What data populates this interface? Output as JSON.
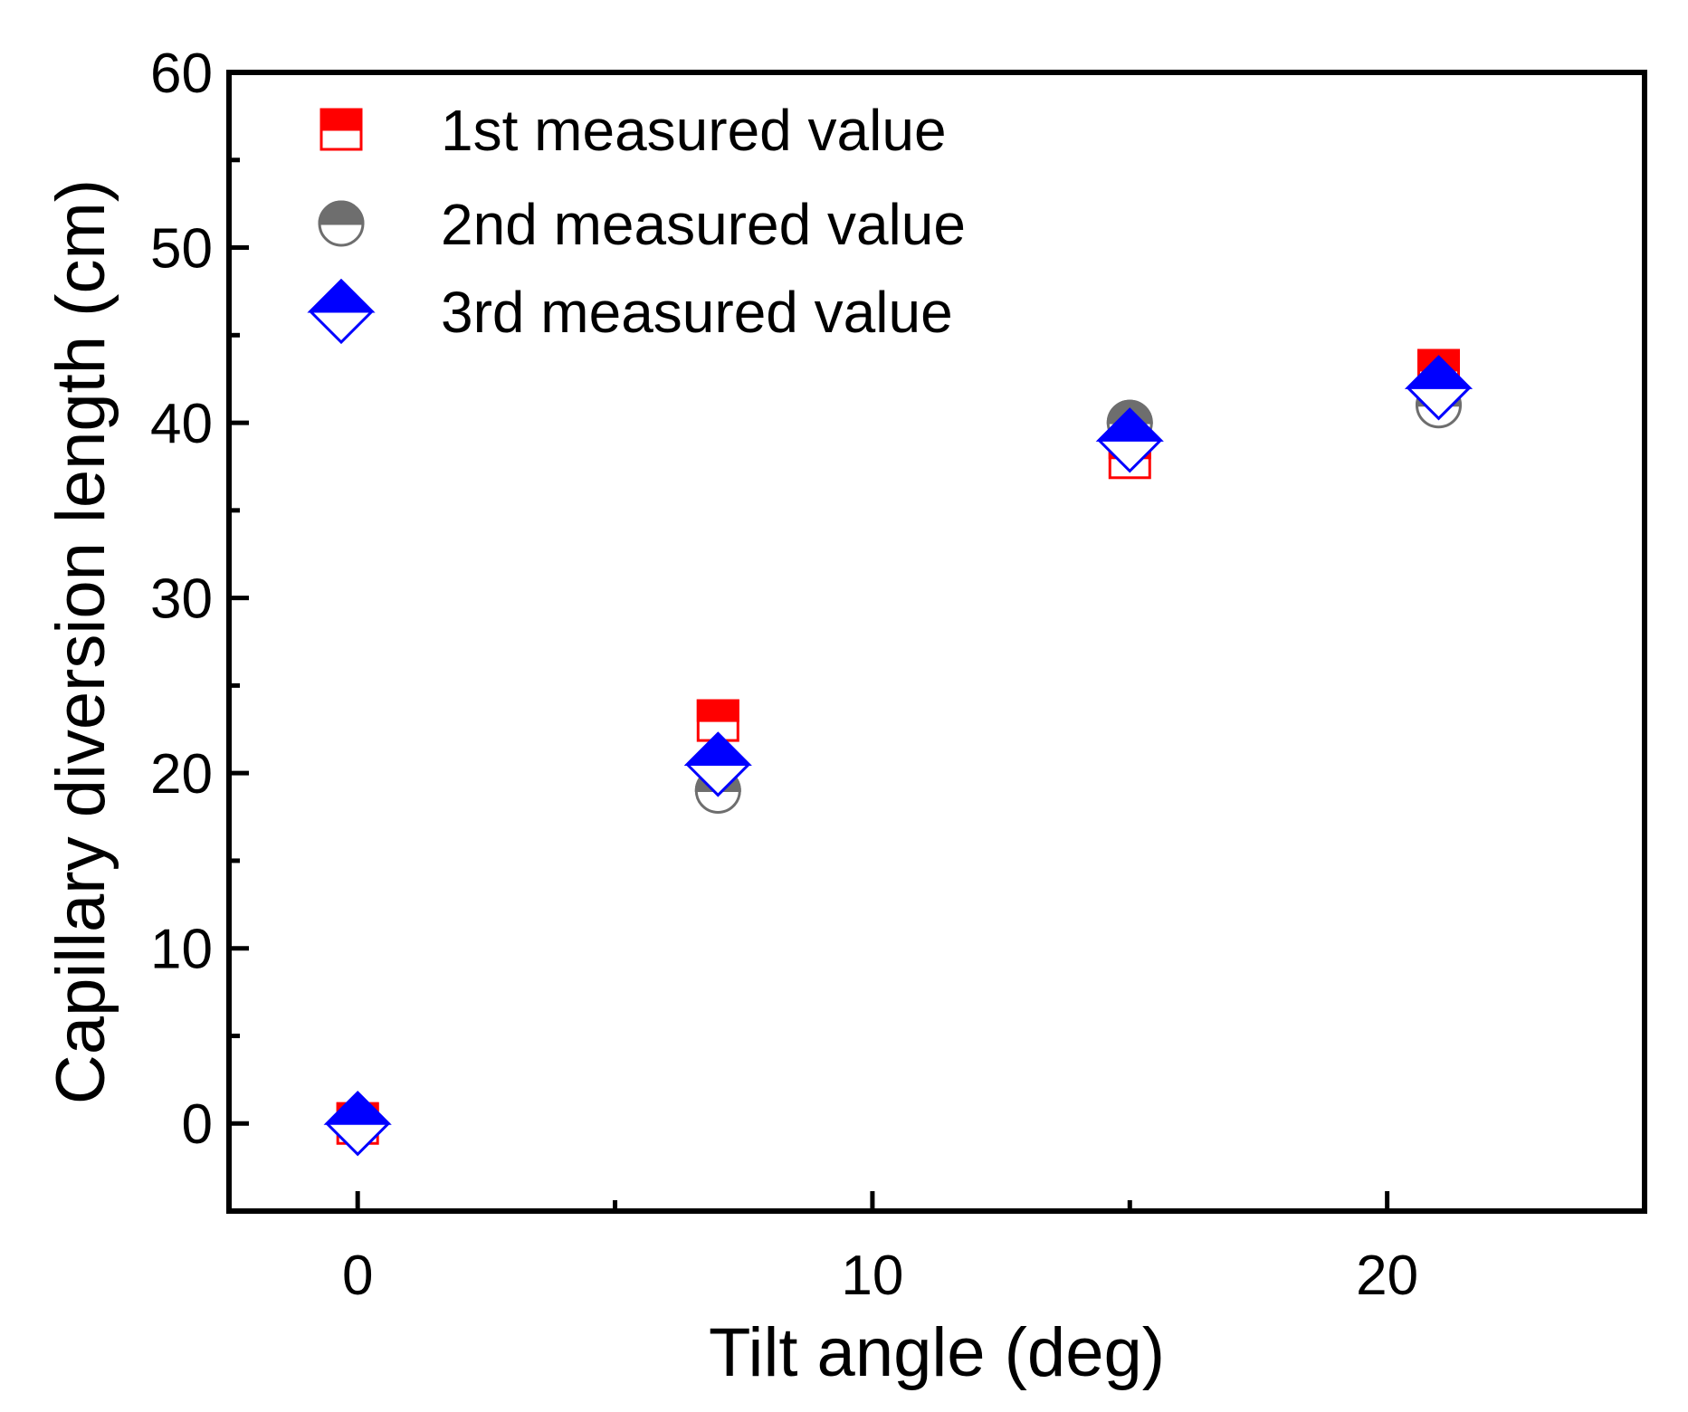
{
  "chart_data": {
    "type": "scatter",
    "title": "",
    "xlabel": "Tilt angle (deg)",
    "ylabel": "Capillary diversion length (cm)",
    "xlim": [
      -2.5,
      25
    ],
    "ylim": [
      -5,
      60
    ],
    "x_ticks": [
      0,
      10,
      20
    ],
    "x_tick_labels": [
      "0",
      "10",
      "20"
    ],
    "x_minor_ticks": [
      5,
      15
    ],
    "y_ticks": [
      0,
      10,
      20,
      30,
      40,
      50,
      60
    ],
    "y_tick_labels": [
      "0",
      "10",
      "20",
      "30",
      "40",
      "50",
      "60"
    ],
    "y_minor_ticks": [
      5,
      15,
      25,
      35,
      45,
      55
    ],
    "grid": false,
    "legend_position": "top-left",
    "series": [
      {
        "name": "1st measured value",
        "marker": "square-half-filled-top",
        "color": "#ff0000",
        "x": [
          0,
          7,
          15,
          21
        ],
        "y": [
          0,
          23,
          38,
          43
        ]
      },
      {
        "name": "2nd measured value",
        "marker": "circle-half-filled-top",
        "color": "#6e6e6e",
        "x": [
          0,
          7,
          15,
          21
        ],
        "y": [
          0,
          19,
          40,
          41
        ]
      },
      {
        "name": "3rd measured value",
        "marker": "diamond-half-filled-top",
        "color": "#0000ff",
        "x": [
          0,
          7,
          15,
          21
        ],
        "y": [
          0,
          20.5,
          39,
          42
        ]
      }
    ]
  }
}
